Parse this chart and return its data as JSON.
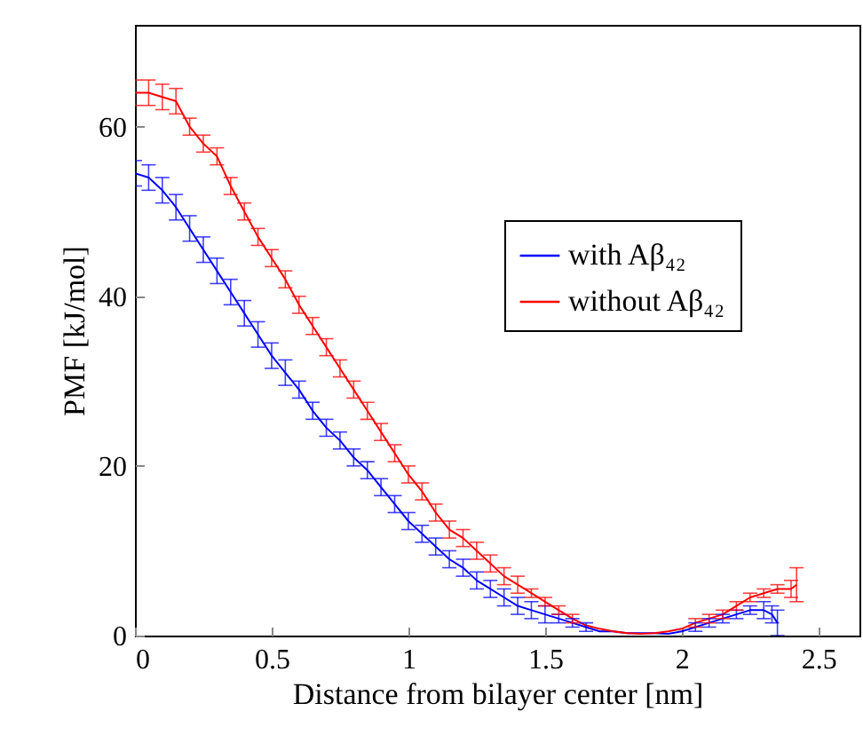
{
  "chart_data": {
    "type": "line",
    "xlabel": "Distance from bilayer center [nm]",
    "ylabel": "PMF [kJ/mol]",
    "xlim": [
      0,
      2.65
    ],
    "xticks": [
      0,
      0.5,
      1,
      1.5,
      2,
      2.5
    ],
    "ylim": [
      0,
      72
    ],
    "yticks": [
      0,
      20,
      40,
      60
    ],
    "legend": "right",
    "grid": false,
    "marker": "none",
    "line_style": "solid",
    "series": [
      {
        "name": "with Aβ₄₂",
        "color": "#0000ff",
        "x": [
          0,
          0.05,
          0.1,
          0.15,
          0.2,
          0.25,
          0.3,
          0.35,
          0.4,
          0.45,
          0.5,
          0.55,
          0.6,
          0.65,
          0.7,
          0.75,
          0.8,
          0.85,
          0.9,
          0.95,
          1.0,
          1.05,
          1.1,
          1.15,
          1.2,
          1.25,
          1.3,
          1.35,
          1.4,
          1.45,
          1.5,
          1.55,
          1.6,
          1.65,
          1.7,
          1.75,
          1.8,
          1.85,
          1.9,
          1.95,
          2.0,
          2.05,
          2.1,
          2.15,
          2.2,
          2.25,
          2.3,
          2.33,
          2.35
        ],
        "values": [
          54.5,
          54,
          52.5,
          50.5,
          48,
          45.5,
          43,
          40.5,
          38,
          35.5,
          33,
          31,
          29,
          26.5,
          24.5,
          23,
          21,
          19.5,
          17.5,
          15.5,
          13.5,
          12,
          10.5,
          9,
          8,
          6.5,
          5.5,
          4.5,
          3.5,
          3,
          2.5,
          2,
          1.5,
          1,
          0.5,
          0.5,
          0.3,
          0.3,
          0.3,
          0.2,
          0.5,
          1,
          1.5,
          2,
          2.5,
          3,
          3,
          2.5,
          1.5
        ],
        "errors": [
          1.5,
          1.5,
          1.5,
          1.5,
          1.5,
          1.5,
          1.5,
          1.5,
          1.5,
          1.5,
          1.5,
          1.5,
          1,
          1,
          1,
          1,
          1,
          1,
          1,
          1,
          1,
          1,
          1,
          1,
          1,
          1,
          1,
          1,
          1,
          1,
          1,
          0.5,
          0.5,
          0.5,
          null,
          null,
          null,
          null,
          null,
          null,
          null,
          0.5,
          0.5,
          0.5,
          0.5,
          0.5,
          1,
          1,
          1.5
        ]
      },
      {
        "name": "without Aβ₄₂",
        "color": "#ff0000",
        "x": [
          0,
          0.05,
          0.1,
          0.15,
          0.2,
          0.25,
          0.3,
          0.35,
          0.4,
          0.45,
          0.5,
          0.55,
          0.6,
          0.65,
          0.7,
          0.75,
          0.8,
          0.85,
          0.9,
          0.95,
          1.0,
          1.05,
          1.1,
          1.15,
          1.2,
          1.25,
          1.3,
          1.35,
          1.4,
          1.45,
          1.5,
          1.55,
          1.6,
          1.65,
          1.7,
          1.75,
          1.8,
          1.85,
          1.9,
          1.95,
          2.0,
          2.05,
          2.1,
          2.15,
          2.2,
          2.25,
          2.3,
          2.35,
          2.4,
          2.42
        ],
        "values": [
          64,
          64,
          63.5,
          63,
          60,
          58,
          56.5,
          53,
          50,
          47,
          44.5,
          42,
          39,
          36.5,
          34,
          31.5,
          29,
          26.5,
          24,
          21.5,
          19,
          17,
          14.5,
          12.5,
          11.5,
          10,
          8.5,
          7,
          6,
          5,
          4,
          3,
          2,
          1.2,
          0.8,
          0.5,
          0.3,
          0.2,
          0.3,
          0.5,
          0.8,
          1.5,
          2,
          2.5,
          3.5,
          4.5,
          5,
          5.5,
          5.5,
          6
        ],
        "errors": [
          1.5,
          1.5,
          1.5,
          1.5,
          1,
          1,
          1,
          1,
          1,
          1,
          1,
          1,
          1,
          1,
          1,
          1,
          1,
          1,
          1,
          1,
          1,
          1,
          1,
          1,
          1,
          1,
          1,
          1,
          1,
          0.5,
          0.5,
          0.5,
          0.5,
          null,
          null,
          null,
          null,
          null,
          null,
          null,
          null,
          0.5,
          0.5,
          0.5,
          0.5,
          0.5,
          0.5,
          0.5,
          1,
          2
        ]
      }
    ]
  }
}
